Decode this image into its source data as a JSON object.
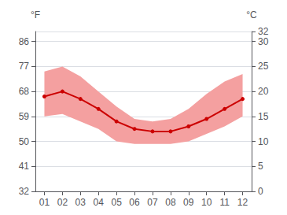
{
  "chart_data": {
    "type": "line",
    "categories": [
      "01",
      "02",
      "03",
      "04",
      "05",
      "06",
      "07",
      "08",
      "09",
      "10",
      "11",
      "12"
    ],
    "series": [
      {
        "type": "band",
        "low": [
          15.0,
          15.5,
          14.0,
          12.5,
          10.0,
          9.5,
          9.5,
          9.5,
          10.0,
          11.5,
          13.0,
          15.0
        ],
        "high": [
          24.0,
          25.0,
          23.0,
          20.0,
          17.0,
          14.5,
          14.0,
          14.5,
          16.5,
          19.5,
          22.0,
          23.5
        ],
        "color": "#f4a0a0"
      },
      {
        "type": "line",
        "values": [
          19.0,
          20.0,
          18.5,
          16.5,
          14.0,
          12.5,
          12.0,
          12.0,
          13.0,
          14.5,
          16.5,
          18.5
        ],
        "color": "#cc0000",
        "marker": "circle"
      }
    ],
    "ylabel": "°C",
    "ylim": [
      0,
      32
    ],
    "yticks": [
      0,
      5,
      10,
      15,
      20,
      25,
      30
    ],
    "y2label": "°F",
    "y2lim": [
      32,
      89.6
    ],
    "y2ticks": [
      32,
      41,
      50,
      59,
      68,
      77,
      86
    ],
    "grid": true
  }
}
